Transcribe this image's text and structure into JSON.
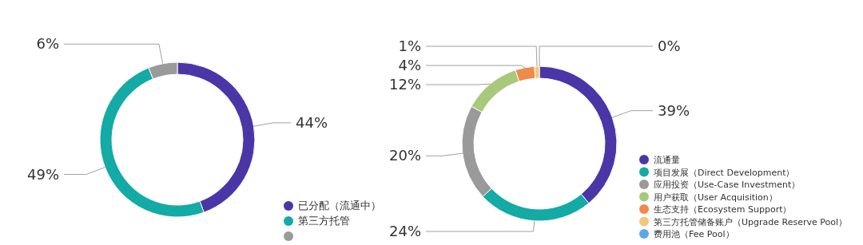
{
  "chart_data": [
    {
      "type": "donut",
      "categories": [
        "已分配（流通中）",
        "第三方托管",
        null
      ],
      "values": [
        44,
        49,
        6
      ],
      "colors": [
        "#4b36a8",
        "#14aaa6",
        "#9a9a9a"
      ],
      "value_labels": [
        "44%",
        "49%",
        "6%"
      ],
      "legend": "bottom right"
    },
    {
      "type": "donut",
      "categories": [
        "流通量",
        "项目发展（Direct Development）",
        "应用投资（Use-Case Investment）",
        "用户获取（User Acquisition）",
        "生态支持（Ecosystem Support）",
        "第三方托管储备账户（Upgrade Reserve Pool）",
        "费用池（Fee Pool）"
      ],
      "values": [
        39,
        24,
        20,
        12,
        4,
        1,
        0
      ],
      "colors": [
        "#4b36a8",
        "#14aaa6",
        "#9a9a9a",
        "#a8c97c",
        "#ee8a4a",
        "#f2c97a",
        "#5aa9e6"
      ],
      "value_labels": [
        "39%",
        "24%",
        "20%",
        "12%",
        "4%",
        "1%",
        "0%"
      ],
      "legend": "bottom right"
    }
  ]
}
